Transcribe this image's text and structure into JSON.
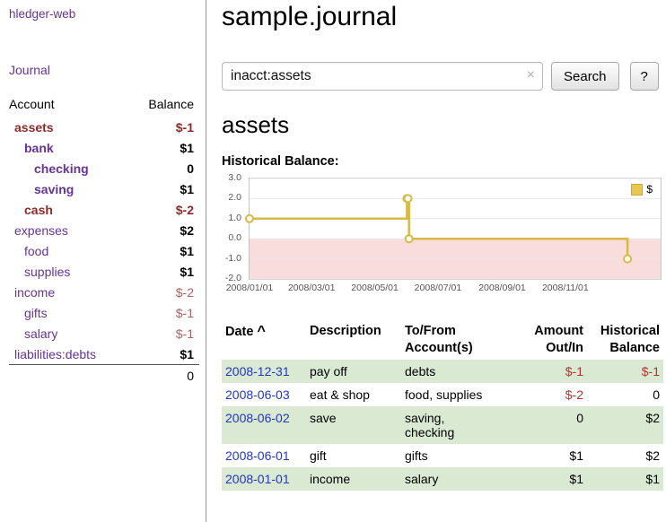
{
  "app": {
    "title": "hledger-web"
  },
  "sidebar": {
    "journal_link": "Journal",
    "table": {
      "headers": {
        "account": "Account",
        "balance": "Balance"
      },
      "rows": [
        {
          "name": "assets",
          "balance": "$-1",
          "indent": 1,
          "bold": true,
          "name_color": "dark-red",
          "neg": "dark"
        },
        {
          "name": "bank",
          "balance": "$1",
          "indent": 2,
          "bold": true
        },
        {
          "name": "checking",
          "balance": "0",
          "indent": 3,
          "bold": true
        },
        {
          "name": "saving",
          "balance": "$1",
          "indent": 3,
          "bold": true
        },
        {
          "name": "cash",
          "balance": "$-2",
          "indent": 2,
          "bold": true,
          "name_color": "dark-red",
          "neg": "dark"
        },
        {
          "name": "expenses",
          "balance": "$2",
          "indent": 1,
          "bold": false
        },
        {
          "name": "food",
          "balance": "$1",
          "indent": 2,
          "bold": false
        },
        {
          "name": "supplies",
          "balance": "$1",
          "indent": 2,
          "bold": false
        },
        {
          "name": "income",
          "balance": "$-2",
          "indent": 1,
          "bold": false,
          "neg": "light"
        },
        {
          "name": "gifts",
          "balance": "$-1",
          "indent": 2,
          "bold": false,
          "neg": "light"
        },
        {
          "name": "salary",
          "balance": "$-1",
          "indent": 2,
          "bold": false,
          "neg": "light"
        },
        {
          "name": "liabilities:debts",
          "balance": "$1",
          "indent": 1,
          "bold": false
        }
      ],
      "total": "0"
    }
  },
  "main": {
    "title": "sample.journal",
    "search": {
      "value": "inacct:assets",
      "clear_icon": "×",
      "button": "Search",
      "help_button": "?"
    },
    "account_heading": "assets",
    "chart_label": "Historical Balance:"
  },
  "chart_data": {
    "type": "line",
    "subtype": "step",
    "title": "Historical Balance:",
    "series": [
      {
        "name": "$",
        "points": [
          [
            "2008-01-01",
            1
          ],
          [
            "2008-06-01",
            2
          ],
          [
            "2008-06-02",
            2
          ],
          [
            "2008-06-03",
            0
          ],
          [
            "2008-12-31",
            -1
          ]
        ]
      }
    ],
    "y_ticks": [
      3.0,
      2.0,
      1.0,
      0.0,
      -1.0,
      -2.0
    ],
    "x_ticks": [
      "2008/01/01",
      "2008/03/01",
      "2008/05/01",
      "2008/07/01",
      "2008/09/01",
      "2008/11/01"
    ],
    "ylim": [
      -2,
      3
    ],
    "xlim": [
      "2008-01-01",
      "2009-02-01"
    ],
    "legend": {
      "label": "$",
      "position": "top-right"
    },
    "grid": true,
    "colors": {
      "line": "#d9b945",
      "marker_fill": "#fffdf4",
      "negative_region": "#f9dcdc",
      "legend_swatch": "#e8c84f",
      "gridline": "#e8e8e8"
    }
  },
  "register": {
    "headers": {
      "date": "Date",
      "sort_indicator": "^",
      "description": "Description",
      "tofrom": "To/From Account(s)",
      "amount": "Amount Out/In",
      "balance": "Historical Balance"
    },
    "rows": [
      {
        "date": "2008-12-31",
        "description": "pay off",
        "accounts": "debts",
        "amount": "$-1",
        "amount_negative": true,
        "balance": "$-1",
        "balance_negative": true,
        "shade": true
      },
      {
        "date": "2008-06-03",
        "description": "eat & shop",
        "accounts": "food, supplies",
        "amount": "$-2",
        "amount_negative": true,
        "balance": "0",
        "balance_negative": false,
        "shade": false
      },
      {
        "date": "2008-06-02",
        "description": "save",
        "accounts": "saving,\nchecking",
        "amount": "0",
        "amount_negative": false,
        "balance": "$2",
        "balance_negative": false,
        "shade": true
      },
      {
        "date": "2008-06-01",
        "description": "gift",
        "accounts": "gifts",
        "amount": "$1",
        "amount_negative": false,
        "balance": "$2",
        "balance_negative": false,
        "shade": false
      },
      {
        "date": "2008-01-01",
        "description": "income",
        "accounts": "salary",
        "amount": "$1",
        "amount_negative": false,
        "balance": "$1",
        "balance_negative": false,
        "shade": true
      }
    ]
  },
  "colors": {
    "link_purple": "#663399",
    "date_link_blue": "#2236cc",
    "negative_dark_red": "#8f2a2a",
    "negative_light_red": "#b26161",
    "negative_table_red": "#b23434",
    "row_shade_green": "#d9e9d2"
  }
}
